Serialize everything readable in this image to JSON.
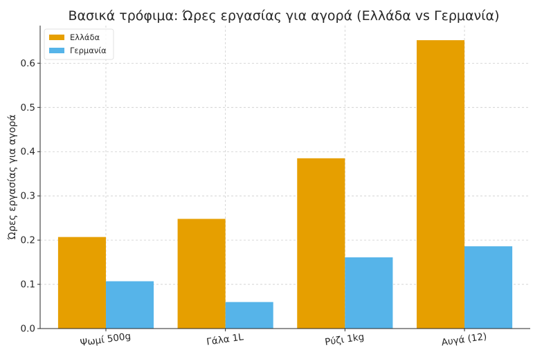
{
  "chart_data": {
    "type": "bar",
    "title": "Βασικά τρόφιμα: Ώρες εργασίας για αγορά (Ελλάδα vs Γερμανία)",
    "xlabel": "",
    "ylabel": "Ώρες εργασίας για αγορά",
    "categories": [
      "Ψωμί 500g",
      "Γάλα 1L",
      "Ρύζι 1kg",
      "Αυγά (12)"
    ],
    "series": [
      {
        "name": "Ελλάδα",
        "color": "#E69F00",
        "values": [
          0.207,
          0.248,
          0.385,
          0.652
        ]
      },
      {
        "name": "Γερμανία",
        "color": "#56B4E9",
        "values": [
          0.107,
          0.06,
          0.161,
          0.186
        ]
      }
    ],
    "ylim": [
      0,
      0.685
    ],
    "yticks": [
      0.0,
      0.1,
      0.2,
      0.3,
      0.4,
      0.5,
      0.6
    ],
    "ytick_labels": [
      "0.0",
      "0.1",
      "0.2",
      "0.3",
      "0.4",
      "0.5",
      "0.6"
    ],
    "grid": true,
    "legend_position": "top-left",
    "xtick_rotation": "slight"
  }
}
